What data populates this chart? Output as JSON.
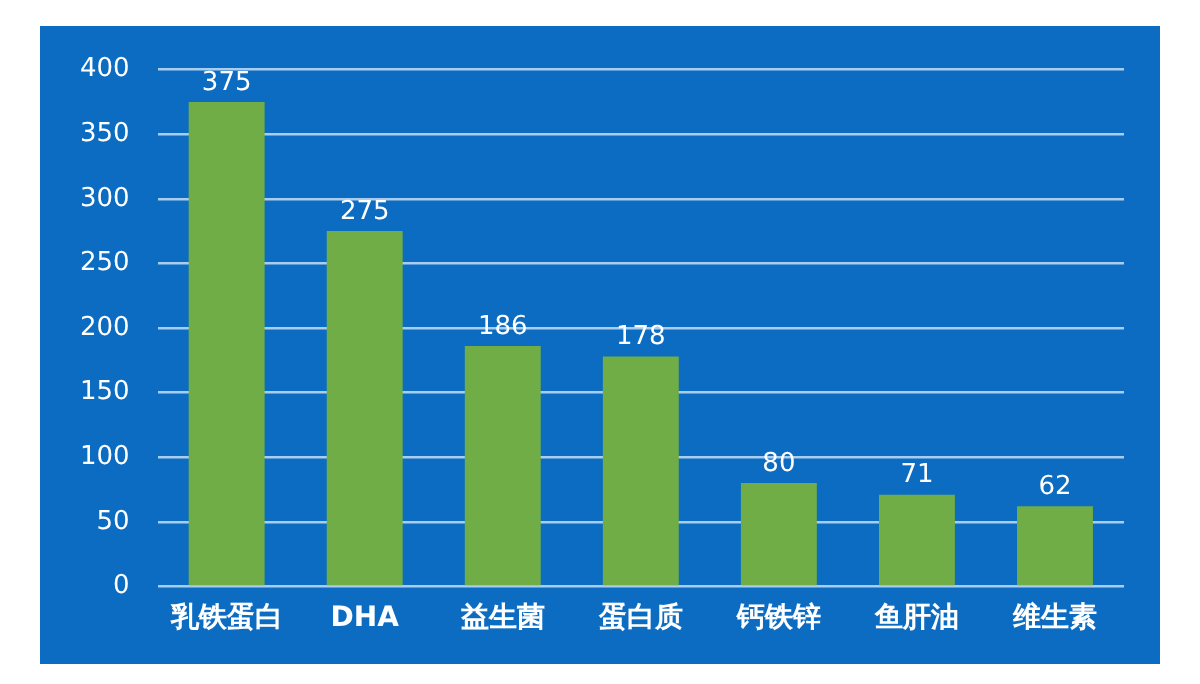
{
  "chart_data": {
    "type": "bar",
    "categories": [
      "乳铁蛋白",
      "DHA",
      "益生菌",
      "蛋白质",
      "钙铁锌",
      "鱼肝油",
      "维生素"
    ],
    "values": [
      375,
      275,
      186,
      178,
      80,
      71,
      62
    ],
    "color": "#70ad47",
    "ylim": [
      0,
      400
    ],
    "yticks": [
      0,
      50,
      100,
      150,
      200,
      250,
      300,
      350,
      400
    ],
    "grid": "y",
    "data_labels": true,
    "legend": false
  }
}
